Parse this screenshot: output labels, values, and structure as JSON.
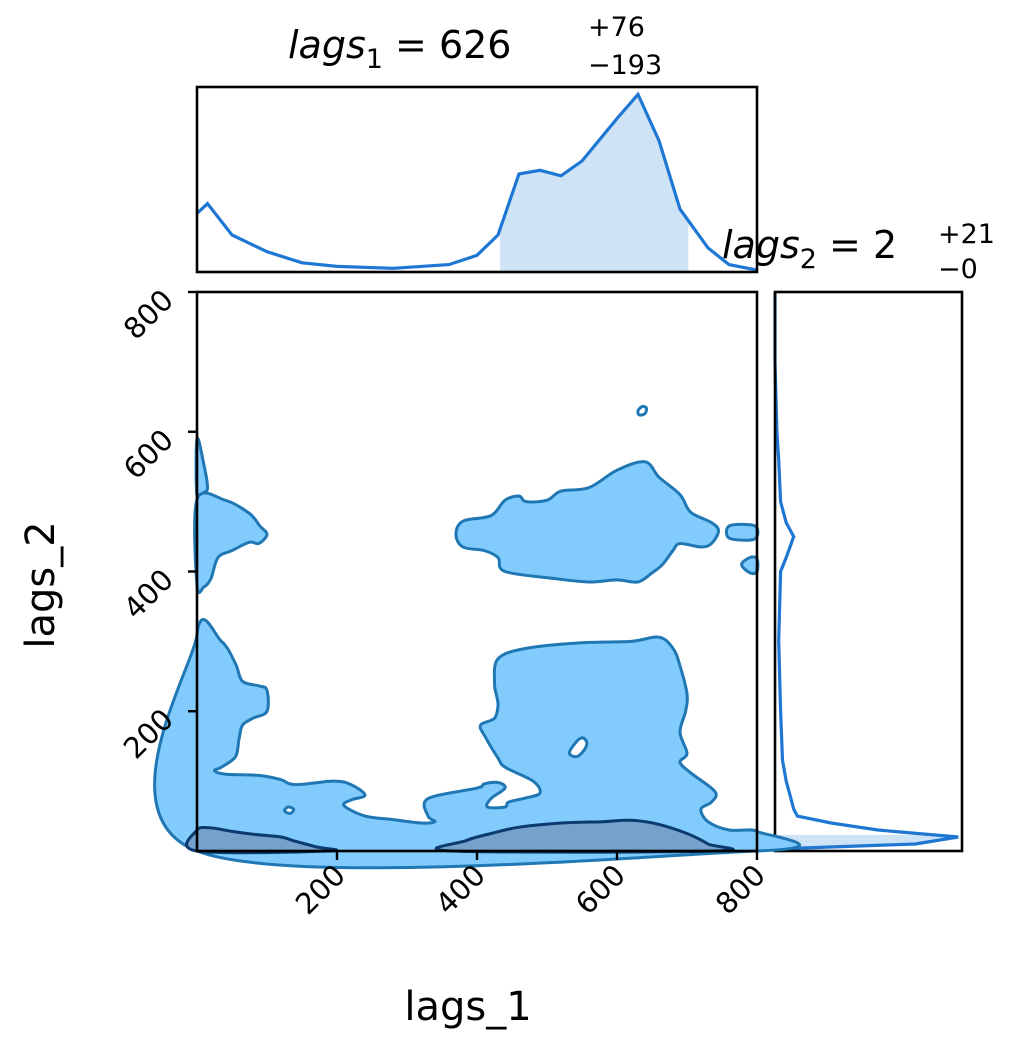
{
  "chart_data": [
    {
      "panel": "marginal-x",
      "type": "area",
      "title": {
        "base": "lags",
        "sub": "1",
        "value": "626",
        "plus": "+76",
        "minus": "−193"
      },
      "x": [
        1,
        15,
        50,
        100,
        150,
        200,
        280,
        360,
        400,
        430,
        460,
        490,
        520,
        550,
        600,
        630,
        660,
        690,
        730,
        760,
        800
      ],
      "density": [
        0.32,
        0.37,
        0.2,
        0.11,
        0.05,
        0.03,
        0.02,
        0.04,
        0.09,
        0.2,
        0.53,
        0.55,
        0.52,
        0.6,
        0.83,
        0.96,
        0.71,
        0.34,
        0.13,
        0.04,
        0.01
      ],
      "shaded_interval": [
        433,
        702
      ],
      "xlim": [
        0,
        800
      ],
      "color": "#1f77d4",
      "fill": "#cfe3f6"
    },
    {
      "panel": "marginal-y",
      "type": "area",
      "title": {
        "base": "lags",
        "sub": "2",
        "value": "2",
        "plus": "+21",
        "minus": "−0"
      },
      "y": [
        3,
        10,
        20,
        30,
        40,
        50,
        60,
        80,
        100,
        130,
        200,
        300,
        400,
        420,
        450,
        470,
        500,
        560,
        600,
        700,
        800
      ],
      "density": [
        0.02,
        0.75,
        0.98,
        0.55,
        0.3,
        0.12,
        0.1,
        0.08,
        0.06,
        0.04,
        0.03,
        0.02,
        0.03,
        0.06,
        0.1,
        0.06,
        0.03,
        0.02,
        0.01,
        0.0,
        0.0
      ],
      "shaded_interval": [
        2,
        23
      ],
      "ylim": [
        0,
        800
      ],
      "color": "#1f77d4",
      "fill": "#cfe3f6"
    },
    {
      "panel": "joint",
      "type": "contour",
      "xlabel": "lags_1",
      "ylabel": "lags_2",
      "xlim": [
        0,
        800
      ],
      "ylim": [
        0,
        800
      ],
      "xticks": [
        "200",
        "400",
        "600",
        "800"
      ],
      "yticks": [
        "200",
        "400",
        "600",
        "800"
      ],
      "tick_values": [
        200,
        400,
        600,
        800
      ],
      "outer_fill": "#82cbfd",
      "outer_line": "#1f77b4",
      "inner_fill": "#76a1cb",
      "inner_line": "#0a3a6e",
      "outer_contours": [
        [
          [
            0,
            0
          ],
          [
            0,
            310
          ],
          [
            35,
            300
          ],
          [
            55,
            268
          ],
          [
            65,
            243
          ],
          [
            90,
            236
          ],
          [
            100,
            230
          ],
          [
            100,
            200
          ],
          [
            80,
            190
          ],
          [
            65,
            180
          ],
          [
            60,
            160
          ],
          [
            55,
            135
          ],
          [
            35,
            120
          ],
          [
            25,
            115
          ],
          [
            40,
            110
          ],
          [
            90,
            108
          ],
          [
            120,
            102
          ],
          [
            140,
            95
          ],
          [
            195,
            100
          ],
          [
            220,
            95
          ],
          [
            240,
            80
          ],
          [
            220,
            73
          ],
          [
            210,
            65
          ],
          [
            240,
            50
          ],
          [
            280,
            45
          ],
          [
            320,
            40
          ],
          [
            340,
            42
          ],
          [
            330,
            50
          ],
          [
            330,
            75
          ],
          [
            400,
            90
          ],
          [
            410,
            96
          ],
          [
            430,
            98
          ],
          [
            440,
            90
          ],
          [
            420,
            75
          ],
          [
            415,
            63
          ],
          [
            440,
            63
          ],
          [
            445,
            70
          ],
          [
            470,
            76
          ],
          [
            490,
            83
          ],
          [
            480,
            100
          ],
          [
            440,
            120
          ],
          [
            430,
            133
          ],
          [
            412,
            163
          ],
          [
            405,
            180
          ],
          [
            425,
            190
          ],
          [
            430,
            208
          ],
          [
            428,
            222
          ],
          [
            425,
            240
          ],
          [
            430,
            275
          ],
          [
            470,
            290
          ],
          [
            550,
            298
          ],
          [
            620,
            300
          ],
          [
            660,
            306
          ],
          [
            680,
            290
          ],
          [
            690,
            265
          ],
          [
            700,
            225
          ],
          [
            698,
            200
          ],
          [
            690,
            170
          ],
          [
            700,
            140
          ],
          [
            690,
            127
          ],
          [
            705,
            112
          ],
          [
            740,
            85
          ],
          [
            735,
            70
          ],
          [
            720,
            60
          ],
          [
            730,
            42
          ],
          [
            760,
            30
          ],
          [
            800,
            28
          ],
          [
            800,
            0
          ]
        ],
        [
          [
            0,
            590
          ],
          [
            10,
            552
          ],
          [
            15,
            520
          ],
          [
            10,
            513
          ],
          [
            0,
            508
          ]
        ],
        [
          [
            0,
            503
          ],
          [
            40,
            502
          ],
          [
            75,
            483
          ],
          [
            90,
            465
          ],
          [
            100,
            453
          ],
          [
            88,
            440
          ],
          [
            75,
            442
          ],
          [
            50,
            430
          ],
          [
            30,
            420
          ],
          [
            20,
            390
          ],
          [
            10,
            378
          ],
          [
            0,
            380
          ]
        ],
        [
          [
            370,
            453
          ],
          [
            380,
            472
          ],
          [
            420,
            480
          ],
          [
            440,
            502
          ],
          [
            460,
            508
          ],
          [
            470,
            500
          ],
          [
            500,
            502
          ],
          [
            520,
            515
          ],
          [
            560,
            520
          ],
          [
            600,
            545
          ],
          [
            640,
            557
          ],
          [
            660,
            535
          ],
          [
            690,
            510
          ],
          [
            705,
            485
          ],
          [
            735,
            470
          ],
          [
            745,
            458
          ],
          [
            735,
            440
          ],
          [
            720,
            435
          ],
          [
            690,
            440
          ],
          [
            680,
            430
          ],
          [
            665,
            410
          ],
          [
            650,
            398
          ],
          [
            630,
            385
          ],
          [
            600,
            388
          ],
          [
            560,
            385
          ],
          [
            510,
            390
          ],
          [
            440,
            400
          ],
          [
            430,
            420
          ],
          [
            410,
            430
          ],
          [
            380,
            435
          ]
        ],
        [
          [
            760,
            465
          ],
          [
            790,
            467
          ],
          [
            800,
            462
          ],
          [
            800,
            450
          ],
          [
            790,
            445
          ],
          [
            760,
            448
          ]
        ],
        [
          [
            778,
            410
          ],
          [
            790,
            420
          ],
          [
            800,
            418
          ],
          [
            800,
            400
          ],
          [
            790,
            398
          ]
        ]
      ],
      "inner_contours": [
        [
          [
            0,
            0
          ],
          [
            0,
            30
          ],
          [
            20,
            33
          ],
          [
            50,
            28
          ],
          [
            80,
            24
          ],
          [
            120,
            20
          ],
          [
            140,
            14
          ],
          [
            170,
            6
          ],
          [
            190,
            0
          ]
        ],
        [
          [
            365,
            0
          ],
          [
            385,
            15
          ],
          [
            420,
            25
          ],
          [
            460,
            34
          ],
          [
            520,
            40
          ],
          [
            580,
            42
          ],
          [
            620,
            44
          ],
          [
            660,
            38
          ],
          [
            700,
            25
          ],
          [
            730,
            10
          ],
          [
            740,
            0
          ]
        ]
      ],
      "holes": [
        [
          [
            532,
            140
          ],
          [
            540,
            154
          ],
          [
            550,
            162
          ],
          [
            557,
            155
          ],
          [
            552,
            143
          ],
          [
            542,
            135
          ]
        ],
        [
          [
            630,
            630
          ],
          [
            636,
            636
          ],
          [
            642,
            634
          ],
          [
            640,
            626
          ],
          [
            632,
            624
          ]
        ],
        [
          [
            125,
            58
          ],
          [
            130,
            63
          ],
          [
            138,
            60
          ],
          [
            134,
            54
          ],
          [
            128,
            55
          ]
        ]
      ]
    }
  ]
}
